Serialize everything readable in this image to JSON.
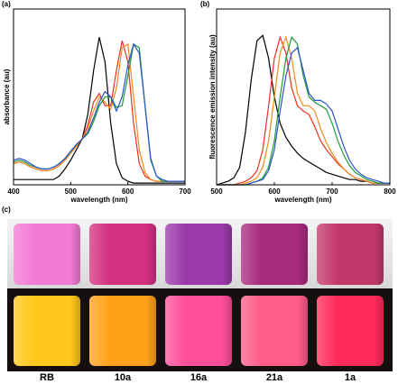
{
  "chart_data": [
    {
      "type": "line",
      "label": "(a)",
      "x_label": "wavelength (nm)",
      "y_label": "absorbance (au)",
      "x": [
        400,
        410,
        420,
        430,
        440,
        450,
        460,
        470,
        480,
        490,
        500,
        510,
        520,
        530,
        540,
        550,
        560,
        570,
        580,
        590,
        600,
        610,
        620,
        630,
        640,
        650,
        660,
        670,
        680,
        690,
        700
      ],
      "xlim": [
        400,
        700
      ],
      "xticks": [
        400,
        500,
        600,
        700
      ],
      "ylim": [
        0,
        1
      ],
      "series": [
        {
          "color": "#000000",
          "values": [
            0.03,
            0.03,
            0.03,
            0.03,
            0.03,
            0.03,
            0.03,
            0.03,
            0.05,
            0.09,
            0.14,
            0.2,
            0.26,
            0.4,
            0.65,
            0.84,
            0.7,
            0.35,
            0.12,
            0.04,
            0.02,
            0.01,
            0.01,
            0.01,
            0.01,
            0.01,
            0.01,
            0.01,
            0.01,
            0.01,
            0.01
          ]
        },
        {
          "color": "#e8311f",
          "values": [
            0.12,
            0.13,
            0.12,
            0.1,
            0.09,
            0.08,
            0.08,
            0.09,
            0.11,
            0.14,
            0.18,
            0.22,
            0.26,
            0.34,
            0.47,
            0.52,
            0.45,
            0.45,
            0.65,
            0.82,
            0.7,
            0.35,
            0.12,
            0.05,
            0.03,
            0.02,
            0.02,
            0.02,
            0.02,
            0.02,
            0.02
          ]
        },
        {
          "color": "#f28a1c",
          "values": [
            0.12,
            0.13,
            0.12,
            0.1,
            0.09,
            0.08,
            0.08,
            0.09,
            0.11,
            0.14,
            0.18,
            0.22,
            0.26,
            0.32,
            0.42,
            0.5,
            0.47,
            0.43,
            0.55,
            0.78,
            0.8,
            0.5,
            0.2,
            0.07,
            0.03,
            0.02,
            0.02,
            0.02,
            0.02,
            0.02,
            0.02
          ]
        },
        {
          "color": "#1f9a3a",
          "values": [
            0.13,
            0.14,
            0.13,
            0.11,
            0.1,
            0.09,
            0.09,
            0.1,
            0.12,
            0.15,
            0.19,
            0.23,
            0.26,
            0.29,
            0.36,
            0.45,
            0.5,
            0.5,
            0.44,
            0.45,
            0.62,
            0.8,
            0.78,
            0.45,
            0.14,
            0.05,
            0.02,
            0.02,
            0.02,
            0.02,
            0.02
          ]
        },
        {
          "color": "#2a52c9",
          "values": [
            0.14,
            0.15,
            0.14,
            0.12,
            0.1,
            0.09,
            0.09,
            0.1,
            0.12,
            0.15,
            0.19,
            0.23,
            0.26,
            0.3,
            0.38,
            0.47,
            0.53,
            0.5,
            0.42,
            0.5,
            0.68,
            0.8,
            0.75,
            0.45,
            0.15,
            0.05,
            0.03,
            0.02,
            0.02,
            0.02,
            0.02
          ]
        }
      ]
    },
    {
      "type": "line",
      "label": "(b)",
      "x_label": "wavelength (nm)",
      "y_label": "fluorescence emission intensity (au)",
      "x": [
        500,
        510,
        520,
        530,
        540,
        550,
        560,
        570,
        580,
        590,
        600,
        610,
        620,
        630,
        640,
        650,
        660,
        670,
        680,
        690,
        700,
        710,
        720,
        730,
        740,
        750,
        760,
        770,
        780,
        790,
        800
      ],
      "xlim": [
        500,
        800
      ],
      "xticks": [
        500,
        600,
        700,
        800
      ],
      "ylim": [
        0,
        1
      ],
      "series": [
        {
          "color": "#000000",
          "values": [
            0,
            0.01,
            0.02,
            0.04,
            0.1,
            0.3,
            0.6,
            0.82,
            0.85,
            0.72,
            0.5,
            0.35,
            0.27,
            0.22,
            0.18,
            0.15,
            0.13,
            0.11,
            0.09,
            0.07,
            0.06,
            0.05,
            0.04,
            0.03,
            0.03,
            0.02,
            0.02,
            0.01,
            0.01,
            0.01,
            0.01
          ]
        },
        {
          "color": "#e8311f",
          "values": [
            0,
            0,
            0,
            0,
            0.01,
            0.02,
            0.04,
            0.08,
            0.2,
            0.45,
            0.72,
            0.84,
            0.75,
            0.55,
            0.45,
            0.42,
            0.4,
            0.33,
            0.25,
            0.2,
            0.16,
            0.12,
            0.09,
            0.06,
            0.04,
            0.03,
            0.02,
            0.01,
            0.01,
            0.01,
            0.01
          ]
        },
        {
          "color": "#f28a1c",
          "values": [
            0,
            0,
            0,
            0,
            0,
            0.01,
            0.02,
            0.04,
            0.1,
            0.25,
            0.5,
            0.75,
            0.84,
            0.72,
            0.52,
            0.45,
            0.45,
            0.42,
            0.32,
            0.24,
            0.18,
            0.13,
            0.09,
            0.06,
            0.04,
            0.03,
            0.02,
            0.01,
            0.01,
            0.01,
            0.01
          ]
        },
        {
          "color": "#1f9a3a",
          "values": [
            0,
            0,
            0,
            0,
            0,
            0,
            0.01,
            0.02,
            0.04,
            0.1,
            0.25,
            0.5,
            0.72,
            0.84,
            0.8,
            0.62,
            0.5,
            0.47,
            0.45,
            0.43,
            0.35,
            0.25,
            0.17,
            0.11,
            0.07,
            0.05,
            0.03,
            0.02,
            0.01,
            0.01,
            0.01
          ]
        },
        {
          "color": "#2a52c9",
          "values": [
            0,
            0,
            0,
            0,
            0,
            0,
            0.01,
            0.02,
            0.03,
            0.08,
            0.2,
            0.42,
            0.62,
            0.75,
            0.78,
            0.65,
            0.52,
            0.48,
            0.48,
            0.46,
            0.42,
            0.32,
            0.22,
            0.14,
            0.09,
            0.06,
            0.04,
            0.03,
            0.02,
            0.01,
            0.01
          ]
        }
      ]
    }
  ],
  "photo": {
    "label": "(c)",
    "samples": [
      "RB",
      "10a",
      "16a",
      "21a",
      "1a"
    ]
  }
}
